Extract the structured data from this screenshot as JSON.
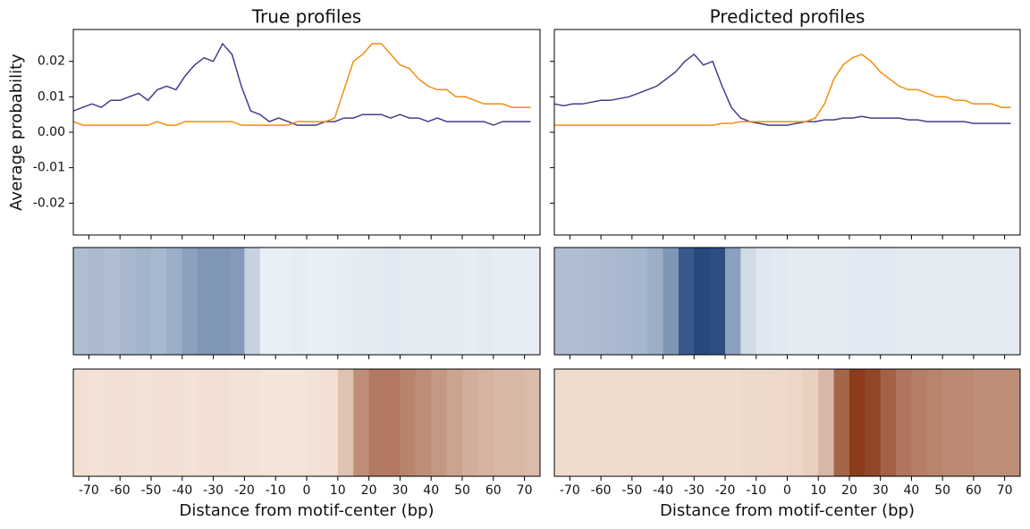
{
  "chart_data": [
    {
      "type": "line",
      "title": "True profiles",
      "ylabel": "Average probability",
      "x": [
        -75,
        -72,
        -69,
        -66,
        -63,
        -60,
        -57,
        -54,
        -51,
        -48,
        -45,
        -42,
        -39,
        -36,
        -33,
        -30,
        -27,
        -24,
        -21,
        -18,
        -15,
        -12,
        -9,
        -6,
        -3,
        0,
        3,
        6,
        9,
        12,
        15,
        18,
        21,
        24,
        27,
        30,
        33,
        36,
        39,
        42,
        45,
        48,
        51,
        54,
        57,
        60,
        63,
        66,
        69,
        72
      ],
      "series": [
        {
          "color": "#4b3a8c",
          "values": [
            0.006,
            0.007,
            0.008,
            0.007,
            0.009,
            0.009,
            0.01,
            0.011,
            0.009,
            0.012,
            0.013,
            0.012,
            0.016,
            0.019,
            0.021,
            0.02,
            0.025,
            0.022,
            0.013,
            0.006,
            0.005,
            0.003,
            0.004,
            0.003,
            0.002,
            0.002,
            0.002,
            0.003,
            0.003,
            0.004,
            0.004,
            0.005,
            0.005,
            0.005,
            0.004,
            0.005,
            0.004,
            0.004,
            0.003,
            0.004,
            0.003,
            0.003,
            0.003,
            0.003,
            0.003,
            0.002,
            0.003,
            0.003,
            0.003,
            0.003
          ]
        },
        {
          "color": "#f28e0e",
          "values": [
            0.003,
            0.002,
            0.002,
            0.002,
            0.002,
            0.002,
            0.002,
            0.002,
            0.002,
            0.003,
            0.002,
            0.002,
            0.003,
            0.003,
            0.003,
            0.003,
            0.003,
            0.003,
            0.002,
            0.002,
            0.002,
            0.002,
            0.002,
            0.002,
            0.003,
            0.003,
            0.003,
            0.003,
            0.004,
            0.012,
            0.02,
            0.022,
            0.025,
            0.025,
            0.022,
            0.019,
            0.018,
            0.015,
            0.013,
            0.012,
            0.012,
            0.01,
            0.01,
            0.009,
            0.008,
            0.008,
            0.008,
            0.007,
            0.007,
            0.007
          ]
        }
      ],
      "xlim": [
        -75,
        75
      ],
      "xticks": [
        -70,
        -60,
        -50,
        -40,
        -30,
        -20,
        -10,
        0,
        10,
        20,
        30,
        40,
        50,
        60,
        70
      ],
      "ylim": [
        -0.029,
        0.029
      ],
      "yticks": [
        0.02,
        0.01,
        {
          "value": 0,
          "label": "0.00"
        },
        -0.01,
        -0.02
      ]
    },
    {
      "type": "heatmap",
      "colors": [
        "#f7fbff",
        "#08306b"
      ],
      "x": [
        -75,
        -70,
        -65,
        -60,
        -55,
        -50,
        -45,
        -40,
        -35,
        -30,
        -25,
        -20,
        -15,
        -10,
        -5,
        0,
        5,
        10,
        15,
        20,
        25,
        30,
        35,
        40,
        45,
        50,
        55,
        60,
        65,
        70
      ],
      "values": [
        0.3,
        0.32,
        0.3,
        0.33,
        0.35,
        0.33,
        0.38,
        0.45,
        0.5,
        0.5,
        0.48,
        0.2,
        0.06,
        0.06,
        0.07,
        0.06,
        0.06,
        0.07,
        0.08,
        0.08,
        0.09,
        0.08,
        0.08,
        0.08,
        0.08,
        0.07,
        0.08,
        0.07,
        0.07,
        0.07
      ],
      "xlim": [
        -75,
        75
      ],
      "xticks": [
        -70,
        -60,
        -50,
        -40,
        -30,
        -20,
        -10,
        0,
        10,
        20,
        30,
        40,
        50,
        60,
        70
      ]
    },
    {
      "type": "heatmap",
      "colors": [
        "#fff5eb",
        "#7f2704"
      ],
      "xlabel": "Distance from motif-center (bp)",
      "x": [
        -75,
        -70,
        -65,
        -60,
        -55,
        -50,
        -45,
        -40,
        -35,
        -30,
        -25,
        -20,
        -15,
        -10,
        -5,
        0,
        5,
        10,
        15,
        20,
        25,
        30,
        35,
        40,
        45,
        50,
        55,
        60,
        65,
        70
      ],
      "values": [
        0.1,
        0.09,
        0.1,
        0.1,
        0.09,
        0.1,
        0.1,
        0.09,
        0.1,
        0.1,
        0.09,
        0.09,
        0.08,
        0.08,
        0.08,
        0.09,
        0.1,
        0.25,
        0.5,
        0.6,
        0.6,
        0.55,
        0.5,
        0.45,
        0.4,
        0.35,
        0.32,
        0.3,
        0.3,
        0.28
      ],
      "xlim": [
        -75,
        75
      ],
      "xticks": [
        -70,
        -60,
        -50,
        -40,
        -30,
        -20,
        -10,
        0,
        10,
        20,
        30,
        40,
        50,
        60,
        70
      ]
    },
    {
      "type": "line",
      "title": "Predicted profiles",
      "x": [
        -75,
        -72,
        -69,
        -66,
        -63,
        -60,
        -57,
        -54,
        -51,
        -48,
        -45,
        -42,
        -39,
        -36,
        -33,
        -30,
        -27,
        -24,
        -21,
        -18,
        -15,
        -12,
        -9,
        -6,
        -3,
        0,
        3,
        6,
        9,
        12,
        15,
        18,
        21,
        24,
        27,
        30,
        33,
        36,
        39,
        42,
        45,
        48,
        51,
        54,
        57,
        60,
        63,
        66,
        69,
        72
      ],
      "series": [
        {
          "color": "#4b3a8c",
          "values": [
            0.008,
            0.0075,
            0.008,
            0.008,
            0.0085,
            0.009,
            0.009,
            0.0095,
            0.01,
            0.011,
            0.012,
            0.013,
            0.015,
            0.017,
            0.02,
            0.022,
            0.019,
            0.02,
            0.013,
            0.007,
            0.004,
            0.003,
            0.0025,
            0.002,
            0.002,
            0.002,
            0.0025,
            0.003,
            0.003,
            0.0035,
            0.0035,
            0.004,
            0.004,
            0.0045,
            0.004,
            0.004,
            0.004,
            0.004,
            0.0035,
            0.0035,
            0.003,
            0.003,
            0.003,
            0.003,
            0.003,
            0.0025,
            0.0025,
            0.0025,
            0.0025,
            0.0025
          ]
        },
        {
          "color": "#f28e0e",
          "values": [
            0.002,
            0.002,
            0.002,
            0.002,
            0.002,
            0.002,
            0.002,
            0.002,
            0.002,
            0.002,
            0.002,
            0.002,
            0.002,
            0.002,
            0.002,
            0.002,
            0.002,
            0.002,
            0.0025,
            0.0025,
            0.003,
            0.003,
            0.003,
            0.003,
            0.003,
            0.003,
            0.003,
            0.003,
            0.004,
            0.008,
            0.015,
            0.019,
            0.021,
            0.022,
            0.02,
            0.017,
            0.015,
            0.013,
            0.012,
            0.012,
            0.011,
            0.01,
            0.01,
            0.009,
            0.009,
            0.008,
            0.008,
            0.008,
            0.007,
            0.007
          ]
        }
      ],
      "xlim": [
        -75,
        75
      ],
      "xticks": [
        -70,
        -60,
        -50,
        -40,
        -30,
        -20,
        -10,
        0,
        10,
        20,
        30,
        40,
        50,
        60,
        70
      ],
      "ylim": [
        -0.029,
        0.029
      ],
      "yticks": [
        0.02,
        0.01,
        {
          "value": 0,
          "label": "0.00"
        },
        -0.01,
        -0.02
      ]
    },
    {
      "type": "heatmap",
      "colors": [
        "#f7fbff",
        "#08306b"
      ],
      "x": [
        -75,
        -70,
        -65,
        -60,
        -55,
        -50,
        -45,
        -40,
        -35,
        -30,
        -25,
        -20,
        -15,
        -10,
        -5,
        0,
        5,
        10,
        15,
        20,
        25,
        30,
        35,
        40,
        45,
        50,
        55,
        60,
        65,
        70
      ],
      "values": [
        0.3,
        0.3,
        0.31,
        0.32,
        0.33,
        0.34,
        0.38,
        0.5,
        0.8,
        0.88,
        0.85,
        0.45,
        0.16,
        0.1,
        0.09,
        0.08,
        0.08,
        0.08,
        0.08,
        0.09,
        0.09,
        0.09,
        0.08,
        0.08,
        0.08,
        0.08,
        0.08,
        0.08,
        0.08,
        0.08
      ],
      "xlim": [
        -75,
        75
      ],
      "xticks": [
        -70,
        -60,
        -50,
        -40,
        -30,
        -20,
        -10,
        0,
        10,
        20,
        30,
        40,
        50,
        60,
        70
      ]
    },
    {
      "type": "heatmap",
      "colors": [
        "#fff5eb",
        "#7f2704"
      ],
      "xlabel": "Distance from motif-center (bp)",
      "x": [
        -75,
        -70,
        -65,
        -60,
        -55,
        -50,
        -45,
        -40,
        -35,
        -30,
        -25,
        -20,
        -15,
        -10,
        -5,
        0,
        5,
        10,
        15,
        20,
        25,
        30,
        35,
        40,
        45,
        50,
        55,
        60,
        65,
        70
      ],
      "values": [
        0.12,
        0.12,
        0.12,
        0.12,
        0.12,
        0.12,
        0.12,
        0.12,
        0.12,
        0.12,
        0.12,
        0.12,
        0.13,
        0.13,
        0.14,
        0.15,
        0.18,
        0.3,
        0.7,
        0.9,
        0.85,
        0.72,
        0.62,
        0.58,
        0.55,
        0.53,
        0.52,
        0.5,
        0.5,
        0.5
      ],
      "xlim": [
        -75,
        75
      ],
      "xticks": [
        -70,
        -60,
        -50,
        -40,
        -30,
        -20,
        -10,
        0,
        10,
        20,
        30,
        40,
        50,
        60,
        70
      ]
    }
  ]
}
